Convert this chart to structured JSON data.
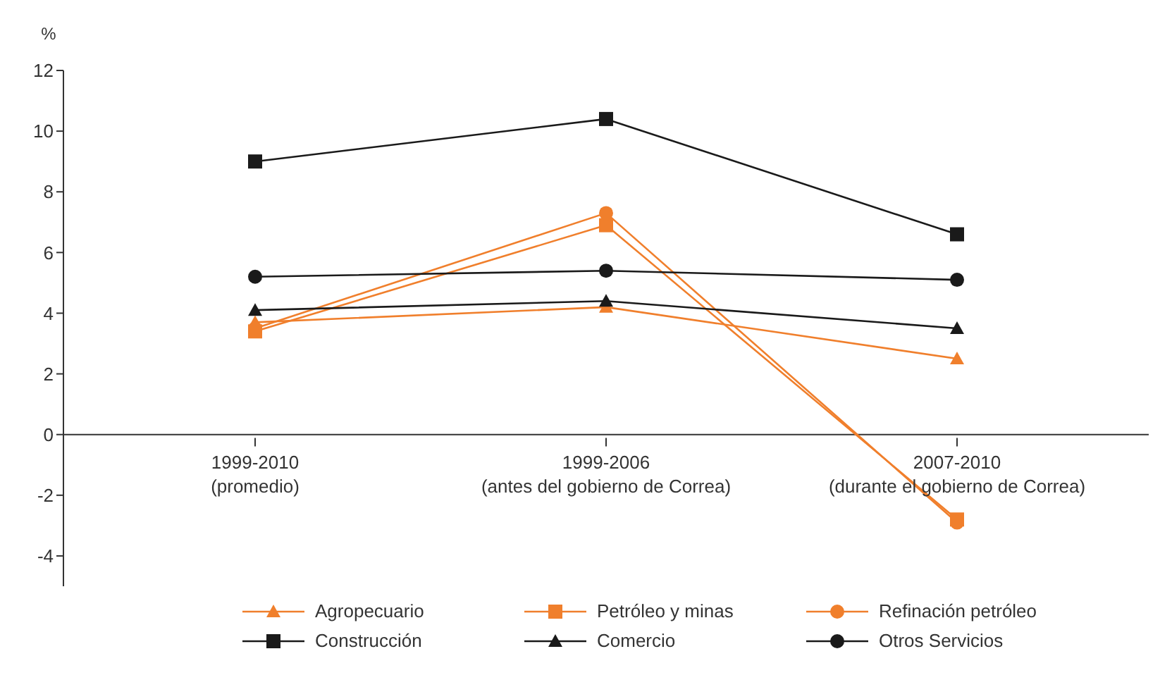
{
  "chart_data": {
    "type": "line",
    "ylabel": "%",
    "categories": [
      "1999-2010\n(promedio)",
      "1999-2006\n(antes del gobierno de Correa)",
      "2007-2010\n(durante el gobierno de Correa)"
    ],
    "series": [
      {
        "name": "Agropecuario",
        "color": "#f07f2c",
        "marker": "triangle",
        "values": [
          3.7,
          4.2,
          2.5
        ]
      },
      {
        "name": "Petróleo y minas",
        "color": "#f07f2c",
        "marker": "square",
        "values": [
          3.4,
          6.9,
          -2.8
        ]
      },
      {
        "name": "Refinación petróleo",
        "color": "#f07f2c",
        "marker": "circle",
        "values": [
          3.5,
          7.3,
          -2.9
        ]
      },
      {
        "name": "Construcción",
        "color": "#1a1a1a",
        "marker": "square",
        "values": [
          9.0,
          10.4,
          6.6
        ]
      },
      {
        "name": "Comercio",
        "color": "#1a1a1a",
        "marker": "triangle",
        "values": [
          4.1,
          4.4,
          3.5
        ]
      },
      {
        "name": "Otros Servicios",
        "color": "#1a1a1a",
        "marker": "circle",
        "values": [
          5.2,
          5.4,
          5.1
        ]
      }
    ],
    "ylim": [
      -5,
      12
    ],
    "yticks": [
      -4,
      -2,
      0,
      2,
      4,
      6,
      8,
      10,
      12
    ],
    "grid": false,
    "legend": "bottom"
  }
}
